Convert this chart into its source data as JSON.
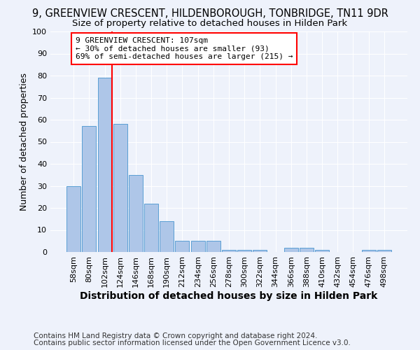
{
  "title_line1": "9, GREENVIEW CRESCENT, HILDENBOROUGH, TONBRIDGE, TN11 9DR",
  "title_line2": "Size of property relative to detached houses in Hilden Park",
  "xlabel": "Distribution of detached houses by size in Hilden Park",
  "ylabel": "Number of detached properties",
  "categories": [
    "58sqm",
    "80sqm",
    "102sqm",
    "124sqm",
    "146sqm",
    "168sqm",
    "190sqm",
    "212sqm",
    "234sqm",
    "256sqm",
    "278sqm",
    "300sqm",
    "322sqm",
    "344sqm",
    "366sqm",
    "388sqm",
    "410sqm",
    "432sqm",
    "454sqm",
    "476sqm",
    "498sqm"
  ],
  "values": [
    30,
    57,
    79,
    58,
    35,
    22,
    14,
    5,
    5,
    5,
    1,
    1,
    1,
    0,
    2,
    2,
    1,
    0,
    0,
    1,
    1
  ],
  "bar_color": "#aec6e8",
  "bar_edge_color": "#5a9fd4",
  "redline_index": 2,
  "annotation_line1": "9 GREENVIEW CRESCENT: 107sqm",
  "annotation_line2": "← 30% of detached houses are smaller (93)",
  "annotation_line3": "69% of semi-detached houses are larger (215) →",
  "annotation_box_color": "white",
  "annotation_box_edge": "red",
  "ylim": [
    0,
    100
  ],
  "yticks": [
    0,
    10,
    20,
    30,
    40,
    50,
    60,
    70,
    80,
    90,
    100
  ],
  "footer_line1": "Contains HM Land Registry data © Crown copyright and database right 2024.",
  "footer_line2": "Contains public sector information licensed under the Open Government Licence v3.0.",
  "background_color": "#eef2fb",
  "grid_color": "#ffffff",
  "title1_fontsize": 10.5,
  "title2_fontsize": 9.5,
  "ylabel_fontsize": 9,
  "xlabel_fontsize": 10,
  "tick_fontsize": 8,
  "annotation_fontsize": 8,
  "footer_fontsize": 7.5
}
